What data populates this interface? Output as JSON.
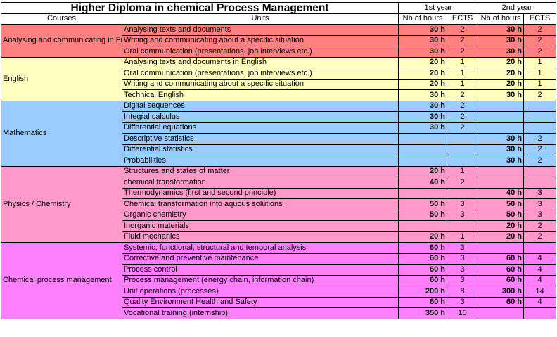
{
  "title": "Higher Diploma in chemical Process Management",
  "years": [
    "1st year",
    "2nd year"
  ],
  "headers": {
    "courses": "Courses",
    "units": "Units",
    "hours": "Nb of hours",
    "ects": "ECTS"
  },
  "groups": [
    {
      "name": "Analysing and communicating in French",
      "color": "#ff8080",
      "units": [
        {
          "unit": "Analysing texts and documents",
          "h1": "30 h",
          "e1": "2",
          "h2": "30 h",
          "e2": "2"
        },
        {
          "unit": "Writing and communicating about a specific situation",
          "h1": "30 h",
          "e1": "2",
          "h2": "30 h",
          "e2": "2"
        },
        {
          "unit": "Oral communication (presentations, job interviews etc.)",
          "h1": "30 h",
          "e1": "2",
          "h2": "30 h",
          "e2": "2"
        }
      ]
    },
    {
      "name": "English",
      "color": "#ffffc0",
      "units": [
        {
          "unit": "Analysing texts and documents in English",
          "h1": "20 h",
          "e1": "1",
          "h2": "20 h",
          "e2": "1"
        },
        {
          "unit": "Oral communication (presentations, job interviews etc.)",
          "h1": "20 h",
          "e1": "1",
          "h2": "20 h",
          "e2": "1"
        },
        {
          "unit": "Writing and communicating about a specific situation",
          "h1": "20 h",
          "e1": "1",
          "h2": "20 h",
          "e2": "1"
        },
        {
          "unit": "Technical English",
          "h1": "30 h",
          "e1": "2",
          "h2": "30 h",
          "e2": "2"
        }
      ]
    },
    {
      "name": "Mathematics",
      "color": "#99ccff",
      "units": [
        {
          "unit": "Digital sequences",
          "h1": "30 h",
          "e1": "2",
          "h2": "",
          "e2": ""
        },
        {
          "unit": "Integral calculus",
          "h1": "30 h",
          "e1": "2",
          "h2": "",
          "e2": ""
        },
        {
          "unit": "Differential equations",
          "h1": "30 h",
          "e1": "2",
          "h2": "",
          "e2": ""
        },
        {
          "unit": "Descriptive statistics",
          "h1": "",
          "e1": "",
          "h2": "30 h",
          "e2": "2"
        },
        {
          "unit": "Differential statistics",
          "h1": "",
          "e1": "",
          "h2": "30 h",
          "e2": "2"
        },
        {
          "unit": "Probabilities",
          "h1": "",
          "e1": "",
          "h2": "30 h",
          "e2": "2"
        }
      ]
    },
    {
      "name": "Physics / Chemistry",
      "color": "#ff99cc",
      "units": [
        {
          "unit": "Structures and states of matter",
          "h1": "20 h",
          "e1": "1",
          "h2": "",
          "e2": ""
        },
        {
          "unit": "chemical transformation",
          "h1": "40 h",
          "e1": "2",
          "h2": "",
          "e2": ""
        },
        {
          "unit": "Thermodynamics (first and second principle)",
          "h1": "",
          "e1": "",
          "h2": "40 h",
          "e2": "3"
        },
        {
          "unit": "Chemical transformation into aquous solutions",
          "h1": "50 h",
          "e1": "3",
          "h2": "50 h",
          "e2": "3"
        },
        {
          "unit": "Organic chemistry",
          "h1": "50 h",
          "e1": "3",
          "h2": "50 h",
          "e2": "3"
        },
        {
          "unit": "Inorganic materials",
          "h1": "",
          "e1": "",
          "h2": "20 h",
          "e2": "2"
        },
        {
          "unit": "Fluid mechanics",
          "h1": "20 h",
          "e1": "1",
          "h2": "20 h",
          "e2": "2"
        }
      ]
    },
    {
      "name": "Chemical process management",
      "color": "#ff80ff",
      "units": [
        {
          "unit": "Systemic, functional, structural and temporal analysis",
          "h1": "60 h",
          "e1": "3",
          "h2": "",
          "e2": ""
        },
        {
          "unit": "Corrective and preventive maintenance",
          "h1": "60 h",
          "e1": "3",
          "h2": "60 h",
          "e2": "4"
        },
        {
          "unit": "Process control",
          "h1": "60 h",
          "e1": "3",
          "h2": "60 h",
          "e2": "4"
        },
        {
          "unit": "Process management (energy chain, information chain)",
          "h1": "60 h",
          "e1": "3",
          "h2": "60 h",
          "e2": "4"
        },
        {
          "unit": "Unit operations (processes)",
          "h1": "200 h",
          "e1": "8",
          "h2": "300 h",
          "e2": "14"
        },
        {
          "unit": "Quality Environment Health and Safety",
          "h1": "60 h",
          "e1": "3",
          "h2": "60 h",
          "e2": "4"
        },
        {
          "unit": "Vocational training (internship)",
          "h1": "350 h",
          "e1": "10",
          "h2": "",
          "e2": ""
        }
      ]
    }
  ]
}
